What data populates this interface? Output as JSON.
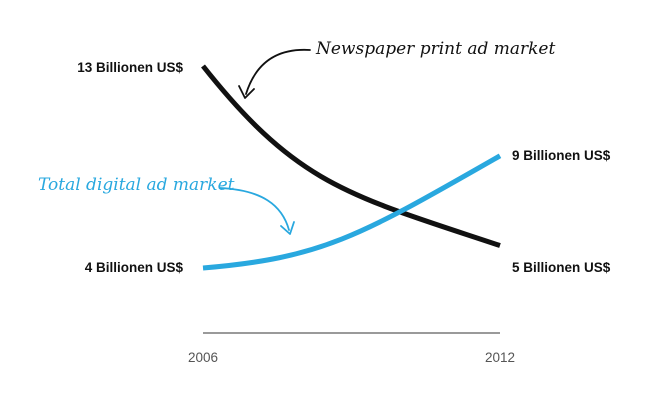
{
  "chart_data": {
    "type": "line",
    "x": [
      2006,
      2012
    ],
    "categories": [
      "2006",
      "2012"
    ],
    "y_unit": "Billionen US$",
    "series": [
      {
        "name": "Newspaper print ad market",
        "color": "#111111",
        "values": [
          13,
          5
        ],
        "start_label": "13 Billionen US$",
        "end_label": "5 Billionen US$"
      },
      {
        "name": "Total digital ad market",
        "color": "#29a8df",
        "values": [
          4,
          9
        ],
        "start_label": "4 Billionen US$",
        "end_label": "9 Billionen US$"
      }
    ],
    "annotations": {
      "print": "Newspaper print ad market",
      "digital": "Total digital ad market"
    },
    "xlabel": "",
    "ylabel": "",
    "grid": false,
    "legend": "none"
  }
}
